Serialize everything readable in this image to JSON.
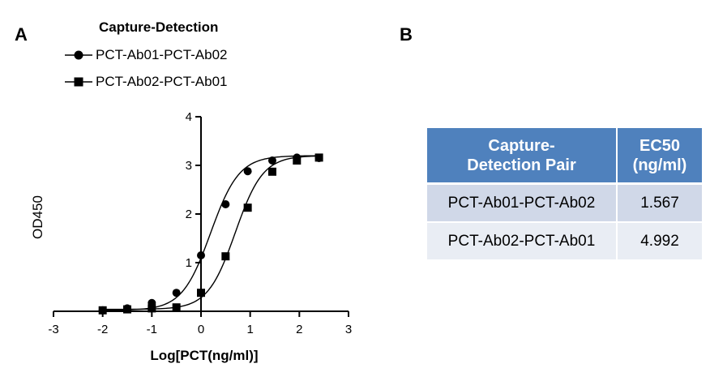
{
  "panels": {
    "a": "A",
    "b": "B"
  },
  "chart_data": {
    "type": "scatter",
    "legend_title": "Capture-Detection",
    "legend_position": "top-left",
    "xlabel": "Log[PCT(ng/ml)]",
    "ylabel": "OD450",
    "xlim": [
      -3,
      3
    ],
    "ylim": [
      0,
      4
    ],
    "x_ticks": [
      -3,
      -2,
      -1,
      0,
      1,
      2,
      3
    ],
    "y_ticks": [
      1,
      2,
      3,
      4
    ],
    "grid": false,
    "series": [
      {
        "name": "PCT-Ab01-PCT-Ab02",
        "marker": "circle",
        "x": [
          -2.0,
          -1.5,
          -1.0,
          -0.5,
          0.0,
          0.5,
          0.95,
          1.45,
          1.95,
          2.4
        ],
        "y": [
          0.02,
          0.06,
          0.17,
          0.38,
          1.15,
          2.2,
          2.88,
          3.1,
          3.16,
          3.15
        ],
        "curve": {
          "bottom": 0.02,
          "top": 3.2,
          "logEC50": 0.195,
          "hill": 1.5
        }
      },
      {
        "name": "PCT-Ab02-PCT-Ab01",
        "marker": "square",
        "x": [
          -2.0,
          -1.5,
          -1.0,
          -0.5,
          0.0,
          0.5,
          0.95,
          1.45,
          1.95,
          2.4
        ],
        "y": [
          0.02,
          0.04,
          0.06,
          0.08,
          0.38,
          1.13,
          2.13,
          2.87,
          3.1,
          3.16
        ],
        "curve": {
          "bottom": 0.04,
          "top": 3.2,
          "logEC50": 0.698,
          "hill": 1.55
        }
      }
    ]
  },
  "table": {
    "headers": [
      "Capture-Detection Pair",
      "EC50 (ng/ml)"
    ],
    "rows": [
      {
        "pair": "PCT-Ab01-PCT-Ab02",
        "ec50": "1.567"
      },
      {
        "pair": "PCT-Ab02-PCT-Ab01",
        "ec50": "4.992"
      }
    ]
  }
}
